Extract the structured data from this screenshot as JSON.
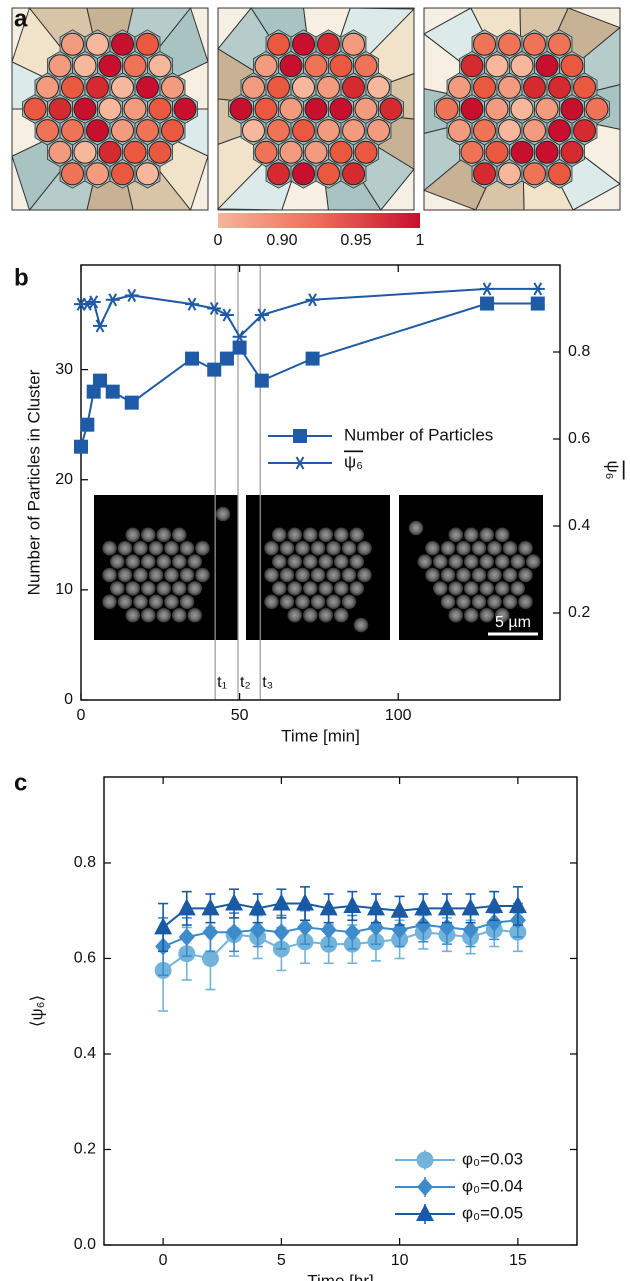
{
  "panel_a": {
    "label": "a",
    "colorbar_labels": [
      "0",
      "0.90",
      "0.95",
      "1"
    ]
  },
  "chart_data": [
    {
      "type": "line",
      "panel": "b",
      "xlabel": "Time [min]",
      "ylabel": "Number of Particles in Cluster",
      "y2label": "ψ₆",
      "xlim": [
        0,
        151
      ],
      "ylim": [
        0,
        39.5
      ],
      "y2lim": [
        0,
        1
      ],
      "xticks": [
        0,
        50,
        100
      ],
      "yticks": [
        0,
        10,
        20,
        30
      ],
      "y2ticks": [
        0.2,
        0.4,
        0.6,
        0.8
      ],
      "x": [
        0,
        2,
        4,
        6,
        10,
        16,
        35,
        42,
        46,
        50,
        57,
        73,
        128,
        144
      ],
      "series": [
        {
          "name": "Number of Particles",
          "color": "#1f5aa6",
          "marker": "square",
          "values": [
            23,
            25,
            28,
            29,
            28,
            27,
            31,
            30,
            31,
            32,
            29,
            31,
            36,
            36
          ]
        },
        {
          "name": "ψ₆",
          "color": "#1f5aa6",
          "marker": "star",
          "axis": "y2",
          "values": [
            0.91,
            0.91,
            0.915,
            0.86,
            0.92,
            0.93,
            0.91,
            0.9,
            0.885,
            0.835,
            0.885,
            0.92,
            0.945,
            0.945
          ]
        }
      ],
      "legend": "center right",
      "vlines": [
        {
          "x": 42.3,
          "label": "t₁"
        },
        {
          "x": 49.5,
          "label": "t₂"
        },
        {
          "x": 56.5,
          "label": "t₃"
        }
      ],
      "scale_bar_label": "5 µm"
    },
    {
      "type": "errorbar",
      "panel": "c",
      "xlabel": "Time [hr]",
      "ylabel": "⟨ψ₆⟩",
      "xlim": [
        -2.5,
        17.5
      ],
      "ylim": [
        0,
        0.98
      ],
      "xticks": [
        0,
        5,
        10,
        15
      ],
      "yticks": [
        {
          "value": 0,
          "label": "0.0"
        },
        0.2,
        0.4,
        0.6,
        0.8
      ],
      "x": [
        0,
        1,
        2,
        3,
        4,
        5,
        6,
        7,
        8,
        9,
        10,
        11,
        12,
        13,
        14,
        15
      ],
      "series": [
        {
          "name": "φ₀=0.03",
          "color": "#72b3dc",
          "marker": "circle",
          "values": [
            0.575,
            0.61,
            0.6,
            0.65,
            0.645,
            0.62,
            0.635,
            0.63,
            0.63,
            0.635,
            0.64,
            0.655,
            0.65,
            0.645,
            0.66,
            0.655
          ],
          "errors": [
            0.085,
            0.055,
            0.065,
            0.045,
            0.045,
            0.045,
            0.045,
            0.04,
            0.04,
            0.04,
            0.04,
            0.035,
            0.035,
            0.035,
            0.035,
            0.04
          ]
        },
        {
          "name": "φ₀=0.04",
          "color": "#3d8bcb",
          "marker": "diamond",
          "values": [
            0.625,
            0.645,
            0.655,
            0.655,
            0.66,
            0.655,
            0.665,
            0.66,
            0.655,
            0.665,
            0.66,
            0.67,
            0.665,
            0.66,
            0.675,
            0.68
          ],
          "errors": [
            0.06,
            0.04,
            0.04,
            0.04,
            0.035,
            0.035,
            0.035,
            0.035,
            0.035,
            0.035,
            0.035,
            0.035,
            0.035,
            0.035,
            0.035,
            0.035
          ]
        },
        {
          "name": "φ₀=0.05",
          "color": "#1a5aa5",
          "marker": "triangle",
          "values": [
            0.665,
            0.705,
            0.705,
            0.715,
            0.705,
            0.715,
            0.715,
            0.705,
            0.71,
            0.705,
            0.7,
            0.705,
            0.705,
            0.705,
            0.71,
            0.71
          ],
          "errors": [
            0.05,
            0.035,
            0.03,
            0.03,
            0.03,
            0.03,
            0.035,
            0.03,
            0.03,
            0.03,
            0.03,
            0.03,
            0.03,
            0.03,
            0.03,
            0.04
          ]
        }
      ],
      "legend": "lower right"
    }
  ]
}
